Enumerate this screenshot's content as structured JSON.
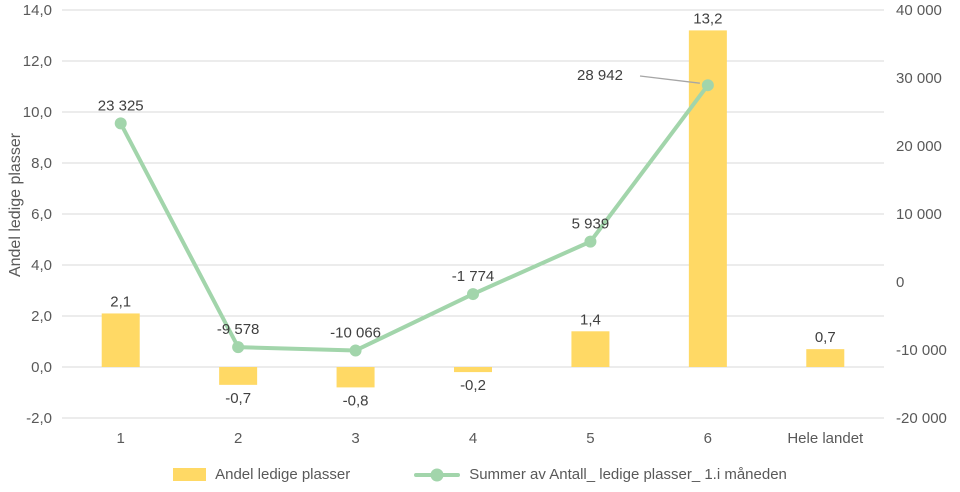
{
  "chart_data": {
    "type": "combo",
    "categories": [
      "1",
      "2",
      "3",
      "4",
      "5",
      "6",
      "Hele landet"
    ],
    "series": [
      {
        "name": "Andel ledige plasser",
        "type": "bar",
        "axis": "left",
        "color": "#ffd965",
        "values": [
          2.1,
          -0.7,
          -0.8,
          -0.2,
          1.4,
          13.2,
          0.7
        ],
        "labels": [
          "2,1",
          "-0,7",
          "-0,8",
          "-0,2",
          "1,4",
          "13,2",
          "0,7"
        ]
      },
      {
        "name": "Summer av Antall_ ledige plasser_ 1.i måneden",
        "type": "line",
        "axis": "right",
        "color": "#a2d5ab",
        "values": [
          23325,
          -9578,
          -10066,
          -1774,
          5939,
          28942,
          null
        ],
        "labels": [
          "23 325",
          "-9 578",
          "-10 066",
          "-1 774",
          "5 939",
          "28 942",
          ""
        ]
      }
    ],
    "left_axis": {
      "title": "Andel ledige plasser",
      "min": -2,
      "max": 14,
      "step": 2,
      "tick_labels": [
        "-2,0",
        "0,0",
        "2,0",
        "4,0",
        "6,0",
        "8,0",
        "10,0",
        "12,0",
        "14,0"
      ]
    },
    "right_axis": {
      "min": -20000,
      "max": 40000,
      "step": 10000,
      "tick_labels": [
        "-20 000",
        "-10 000",
        "0",
        "10 000",
        "20 000",
        "30 000",
        "40 000"
      ]
    },
    "grid": true,
    "gridline_color": "#d9d9d9",
    "text_color": "#595959",
    "label_color": "#404040",
    "leader_line_color": "#a6a6a6",
    "legend_position": "bottom",
    "annotation": {
      "series": 1,
      "index": 5,
      "label": "28 942",
      "leader_line": true
    }
  }
}
